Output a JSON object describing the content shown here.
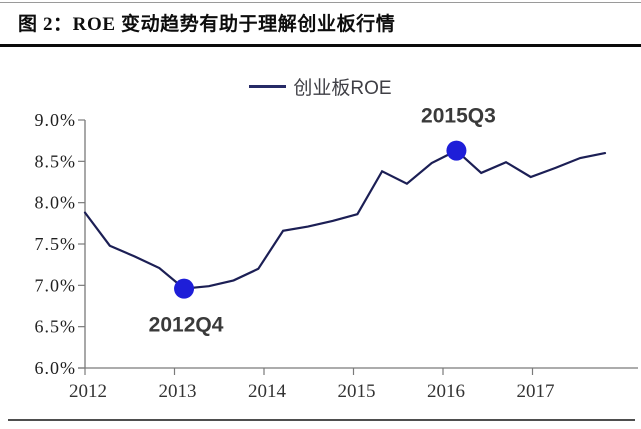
{
  "header": {
    "title": "图 2：ROE 变动趋势有助于理解创业板行情"
  },
  "legend": {
    "label": "创业板ROE"
  },
  "chart_data": {
    "type": "line",
    "title": "创业板ROE",
    "series": [
      {
        "name": "创业板ROE",
        "x": [
          "2011Q4",
          "2012Q1",
          "2012Q2",
          "2012Q3",
          "2012Q4",
          "2013Q1",
          "2013Q2",
          "2013Q3",
          "2013Q4",
          "2014Q1",
          "2014Q2",
          "2014Q3",
          "2014Q4",
          "2015Q1",
          "2015Q2",
          "2015Q3",
          "2015Q4",
          "2016Q1",
          "2016Q2",
          "2016Q3",
          "2016Q4",
          "2017Q1"
        ],
        "values": [
          7.88,
          7.48,
          7.35,
          7.21,
          6.96,
          6.99,
          7.06,
          7.2,
          7.66,
          7.71,
          7.78,
          7.86,
          8.38,
          8.23,
          8.48,
          8.63,
          8.36,
          8.49,
          8.31,
          8.42,
          8.54,
          8.6
        ]
      }
    ],
    "y_ticks": {
      "labels": [
        "9.0%",
        "8.5%",
        "8.0%",
        "7.5%",
        "7.0%",
        "6.5%",
        "6.0%"
      ],
      "values": [
        9.0,
        8.5,
        8.0,
        7.5,
        7.0,
        6.5,
        6.0
      ]
    },
    "x_tick_labels": [
      "2012",
      "2013",
      "2014",
      "2015",
      "2016",
      "2017"
    ],
    "ylim": [
      6.0,
      9.0
    ],
    "unit": "percent",
    "grid": false,
    "legend_position": "top-center",
    "annotations": [
      {
        "label": "2012Q4",
        "x_label": "2012Q4",
        "value": 6.96,
        "placement": "below"
      },
      {
        "label": "2015Q3",
        "x_label": "2015Q3",
        "value": 8.63,
        "placement": "above"
      }
    ],
    "colors": {
      "line": "#1c1f55",
      "marker": "#1e1ed8",
      "axis": "#7a7a7a",
      "y_tick_text": "#1f1f1f",
      "x_tick_text": "#333333",
      "annotation_text": "#3a3a3a"
    }
  }
}
